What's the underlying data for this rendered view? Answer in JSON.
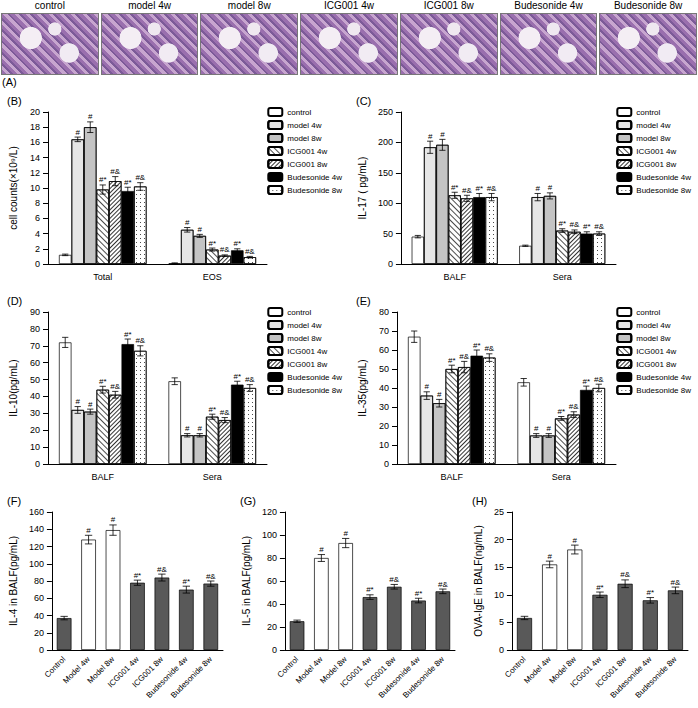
{
  "panel_a": {
    "label": "(A)",
    "captions": [
      "control",
      "model 4w",
      "model 8w",
      "ICG001 4w",
      "ICG001 8w",
      "Budesonide 4w",
      "Budesonide 8w"
    ]
  },
  "chart_data": [
    {
      "type": "bar",
      "title": "(B)",
      "y_label": "cell counts(×10⁹/L)",
      "categories": [
        "Total",
        "EOS"
      ],
      "ylim": [
        0,
        20
      ],
      "yticks": [
        0,
        2,
        4,
        6,
        8,
        10,
        12,
        14,
        16,
        18,
        20
      ],
      "grid": false,
      "legend": "upper right",
      "series": [
        {
          "name": "control",
          "color": "#ffffff",
          "values": [
            1.2,
            0.1
          ],
          "errors": [
            0.1,
            0.05
          ],
          "marks": [
            null,
            null
          ]
        },
        {
          "name": "model 4w",
          "color": "#e6e6e6",
          "values": [
            16.4,
            4.5
          ],
          "errors": [
            0.3,
            0.3
          ],
          "marks": [
            "#",
            "#"
          ]
        },
        {
          "name": "model 8w",
          "color": "#c4c4c4",
          "values": [
            18.0,
            3.7
          ],
          "errors": [
            0.7,
            0.2
          ],
          "marks": [
            "#",
            "#"
          ]
        },
        {
          "name": "ICG001 4w",
          "color": "#ffffff",
          "values": [
            9.8,
            1.9
          ],
          "errors": [
            0.6,
            0.2
          ],
          "marks": [
            "#*",
            "#*"
          ]
        },
        {
          "name": "ICG001 8w",
          "color": "#ffffff",
          "values": [
            10.9,
            1.1
          ],
          "errors": [
            0.6,
            0.1
          ],
          "marks": [
            "#&",
            "#&"
          ]
        },
        {
          "name": "Budesonide 4w",
          "color": "#000000",
          "values": [
            9.6,
            1.8
          ],
          "errors": [
            0.5,
            0.2
          ],
          "marks": [
            "#*",
            "#*"
          ]
        },
        {
          "name": "Budesonide 8w",
          "color": "#ffffff",
          "values": [
            10.2,
            0.9
          ],
          "errors": [
            0.5,
            0.1
          ],
          "marks": [
            "#&",
            "#&"
          ]
        }
      ]
    },
    {
      "type": "bar",
      "title": "(C)",
      "y_label": "IL-17 ( pg/mL)",
      "categories": [
        "BALF",
        "Sera"
      ],
      "ylim": [
        0,
        250
      ],
      "yticks": [
        0,
        50,
        100,
        150,
        200,
        250
      ],
      "grid": false,
      "legend": "upper right",
      "series": [
        {
          "name": "control",
          "color": "#ffffff",
          "values": [
            45,
            30
          ],
          "errors": [
            2,
            1
          ],
          "marks": [
            null,
            null
          ]
        },
        {
          "name": "model 4w",
          "color": "#e6e6e6",
          "values": [
            192,
            110
          ],
          "errors": [
            10,
            6
          ],
          "marks": [
            "#",
            "#"
          ]
        },
        {
          "name": "model 8w",
          "color": "#c4c4c4",
          "values": [
            196,
            112
          ],
          "errors": [
            9,
            5
          ],
          "marks": [
            "#",
            "#"
          ]
        },
        {
          "name": "ICG001 4w",
          "color": "#ffffff",
          "values": [
            113,
            55
          ],
          "errors": [
            5,
            3
          ],
          "marks": [
            "#*",
            "#*"
          ]
        },
        {
          "name": "ICG001 8w",
          "color": "#ffffff",
          "values": [
            108,
            53
          ],
          "errors": [
            5,
            3
          ],
          "marks": [
            "#&",
            "#&"
          ]
        },
        {
          "name": "Budesonide 4w",
          "color": "#000000",
          "values": [
            110,
            50
          ],
          "errors": [
            6,
            3
          ],
          "marks": [
            "#*",
            "#*"
          ]
        },
        {
          "name": "Budesonide 8w",
          "color": "#ffffff",
          "values": [
            110,
            50
          ],
          "errors": [
            6,
            3
          ],
          "marks": [
            "#&",
            "#&"
          ]
        }
      ]
    },
    {
      "type": "bar",
      "title": "(D)",
      "y_label": "IL-10(pg/mL)",
      "categories": [
        "BALF",
        "Sera"
      ],
      "ylim": [
        0,
        90
      ],
      "yticks": [
        0,
        10,
        20,
        30,
        40,
        50,
        60,
        70,
        80,
        90
      ],
      "grid": false,
      "legend": "upper right",
      "series": [
        {
          "name": "control",
          "color": "#ffffff",
          "values": [
            72,
            49
          ],
          "errors": [
            3,
            2
          ],
          "marks": [
            null,
            null
          ]
        },
        {
          "name": "model 4w",
          "color": "#e6e6e6",
          "values": [
            32,
            17
          ],
          "errors": [
            2,
            1
          ],
          "marks": [
            "#",
            "#"
          ]
        },
        {
          "name": "model 8w",
          "color": "#c4c4c4",
          "values": [
            31,
            17
          ],
          "errors": [
            1.5,
            1
          ],
          "marks": [
            "#",
            "#"
          ]
        },
        {
          "name": "ICG001 4w",
          "color": "#ffffff",
          "values": [
            44,
            28
          ],
          "errors": [
            2,
            1.5
          ],
          "marks": [
            "#*",
            "#*"
          ]
        },
        {
          "name": "ICG001 8w",
          "color": "#ffffff",
          "values": [
            41,
            26
          ],
          "errors": [
            2,
            1.5
          ],
          "marks": [
            "#&",
            "#&"
          ]
        },
        {
          "name": "Budesonide 4w",
          "color": "#000000",
          "values": [
            71,
            47
          ],
          "errors": [
            3,
            2
          ],
          "marks": [
            "#*",
            "#*"
          ]
        },
        {
          "name": "Budesonide 8w",
          "color": "#ffffff",
          "values": [
            67,
            45
          ],
          "errors": [
            3,
            2
          ],
          "marks": [
            "#&",
            "#&"
          ]
        }
      ]
    },
    {
      "type": "bar",
      "title": "(E)",
      "y_label": "IL-35(pg/mL)",
      "categories": [
        "BALF",
        "Sera"
      ],
      "ylim": [
        0,
        80
      ],
      "yticks": [
        0,
        10,
        20,
        30,
        40,
        50,
        60,
        70,
        80
      ],
      "grid": false,
      "legend": "upper right",
      "series": [
        {
          "name": "control",
          "color": "#ffffff",
          "values": [
            67,
            43
          ],
          "errors": [
            3,
            2
          ],
          "marks": [
            null,
            null
          ]
        },
        {
          "name": "model 4w",
          "color": "#e6e6e6",
          "values": [
            36,
            15
          ],
          "errors": [
            2,
            1
          ],
          "marks": [
            "#",
            "#"
          ]
        },
        {
          "name": "model 8w",
          "color": "#c4c4c4",
          "values": [
            32,
            15
          ],
          "errors": [
            2,
            1
          ],
          "marks": [
            "#",
            "#"
          ]
        },
        {
          "name": "ICG001 4w",
          "color": "#ffffff",
          "values": [
            50,
            24
          ],
          "errors": [
            2,
            1
          ],
          "marks": [
            "#*",
            "#*"
          ]
        },
        {
          "name": "ICG001 8w",
          "color": "#ffffff",
          "values": [
            51,
            26
          ],
          "errors": [
            3,
            1.5
          ],
          "marks": [
            "#&",
            "#&"
          ]
        },
        {
          "name": "Budesonide 4w",
          "color": "#000000",
          "values": [
            57,
            39
          ],
          "errors": [
            3,
            2
          ],
          "marks": [
            "#*",
            "#*"
          ]
        },
        {
          "name": "Budesonide 8w",
          "color": "#ffffff",
          "values": [
            56,
            40
          ],
          "errors": [
            2,
            2
          ],
          "marks": [
            "#&",
            "#&"
          ]
        }
      ]
    },
    {
      "type": "bar",
      "title": "(F)",
      "y_label": "IL-4 in BALF(pg/mL)",
      "categories": [
        "Control",
        "Model 4w",
        "Model 8w",
        "ICG001 4w",
        "ICG001 8w",
        "Budesonide 4w",
        "Budesonide 8w"
      ],
      "ylim": [
        0,
        160
      ],
      "yticks": [
        0,
        20,
        40,
        60,
        80,
        100,
        120,
        140,
        160
      ],
      "grid": false,
      "values": [
        37,
        128,
        139,
        78,
        84,
        70,
        77
      ],
      "errors": [
        2,
        5,
        6,
        3,
        4,
        4,
        3
      ],
      "marks": [
        null,
        "#",
        "#",
        "#*",
        "#&",
        "#*",
        "#&"
      ],
      "colors": [
        "#595959",
        "#ffffff",
        "#ffffff",
        "#595959",
        "#595959",
        "#595959",
        "#595959"
      ]
    },
    {
      "type": "bar",
      "title": "(G)",
      "y_label": "IL-5 in BALF(pg/mL)",
      "categories": [
        "Control",
        "Model 4w",
        "Model 8w",
        "ICG001 4w",
        "ICG001 8w",
        "Budesonide 4w",
        "Budesonide 8w"
      ],
      "ylim": [
        0,
        120
      ],
      "yticks": [
        0,
        20,
        40,
        60,
        80,
        100,
        120
      ],
      "grid": false,
      "values": [
        25,
        80,
        93,
        46,
        55,
        43,
        51
      ],
      "errors": [
        1,
        3,
        4,
        2,
        2,
        2,
        2
      ],
      "marks": [
        null,
        "#",
        "#",
        "#*",
        "#&",
        "#*",
        "#&"
      ],
      "colors": [
        "#595959",
        "#ffffff",
        "#ffffff",
        "#595959",
        "#595959",
        "#595959",
        "#595959"
      ]
    },
    {
      "type": "bar",
      "title": "(H)",
      "y_label": "OVA-IgE in BALF(ng/mL)",
      "categories": [
        "Control",
        "Model 4w",
        "Model 8w",
        "ICG001 4w",
        "ICG001 8w",
        "Budesonide 4w",
        "Budesonide 8w"
      ],
      "ylim": [
        0,
        25
      ],
      "yticks": [
        0,
        5,
        10,
        15,
        20,
        25
      ],
      "grid": false,
      "values": [
        5.8,
        15.5,
        18.2,
        10,
        12,
        9,
        10.8
      ],
      "errors": [
        0.3,
        0.6,
        0.8,
        0.5,
        0.7,
        0.5,
        0.6
      ],
      "marks": [
        null,
        "#",
        "#",
        "#*",
        "#&",
        "#*",
        "#&"
      ],
      "colors": [
        "#595959",
        "#ffffff",
        "#ffffff",
        "#595959",
        "#595959",
        "#595959",
        "#595959"
      ]
    }
  ]
}
